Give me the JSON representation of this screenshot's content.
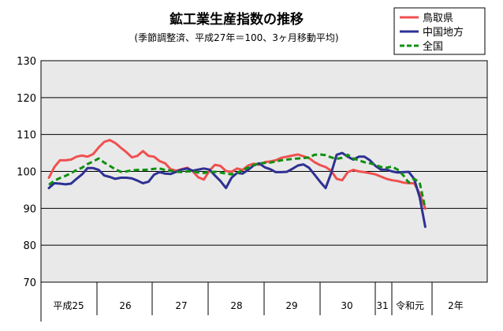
{
  "chart_data": {
    "type": "line",
    "title": "鉱工業生産指数の推移",
    "subtitle": "(季節調整済、平成27年＝100、3ヶ月移動平均)",
    "ylim": [
      70,
      130
    ],
    "yticks": [
      "70",
      "80",
      "90",
      "100",
      "110",
      "120",
      "130"
    ],
    "grid": true,
    "legend_position": "top-right",
    "year_labels": [
      "平成25",
      "26",
      "27",
      "28",
      "29",
      "30",
      "31",
      "令和元",
      "2年"
    ],
    "series": [
      {
        "name": "鳥取県",
        "color": "#f05050",
        "dash": "",
        "values": [
          98.3,
          101.2,
          103.0,
          103.0,
          103.2,
          104.0,
          104.3,
          104.0,
          104.7,
          106.5,
          108.0,
          108.5,
          107.7,
          106.4,
          105.2,
          103.8,
          104.2,
          105.5,
          104.2,
          104.0,
          102.8,
          102.2,
          100.6,
          100.2,
          100.6,
          101.0,
          100.0,
          98.4,
          97.8,
          100.2,
          101.8,
          101.5,
          100.1,
          99.9,
          100.8,
          100.4,
          101.6,
          102.1,
          101.8,
          102.5,
          102.7,
          103.0,
          103.7,
          104.0,
          104.3,
          104.6,
          104.1,
          103.6,
          102.5,
          101.7,
          101.2,
          100.2,
          98.0,
          97.6,
          99.8,
          100.4,
          100.0,
          99.8,
          99.5,
          99.2,
          98.6,
          98.0,
          97.6,
          97.4,
          97.0,
          96.8,
          96.8,
          94.0,
          89.9
        ]
      },
      {
        "name": "中国地方",
        "color": "#2e3192",
        "dash": "",
        "values": [
          95.5,
          96.8,
          96.7,
          96.5,
          96.7,
          98.0,
          99.2,
          100.9,
          100.9,
          100.4,
          98.9,
          98.5,
          98.0,
          98.3,
          98.3,
          98.1,
          97.5,
          96.8,
          97.2,
          99.1,
          99.8,
          99.4,
          99.3,
          99.9,
          100.5,
          100.8,
          100.2,
          100.5,
          100.8,
          100.5,
          98.9,
          97.4,
          95.5,
          98.3,
          99.6,
          99.4,
          100.4,
          101.6,
          102.2,
          101.1,
          100.6,
          99.8,
          99.8,
          99.9,
          100.7,
          101.6,
          101.9,
          101.0,
          99.1,
          97.2,
          95.5,
          99.5,
          104.5,
          105.0,
          104.0,
          103.2,
          104.0,
          104.0,
          103.0,
          101.5,
          100.5,
          100.5,
          100.0,
          99.7,
          99.8,
          99.9,
          98.0,
          93.0,
          85.0
        ]
      },
      {
        "name": "全国",
        "color": "#109010",
        "dash": "7,4",
        "values": [
          96.4,
          97.5,
          98.2,
          98.8,
          99.5,
          100.4,
          101.0,
          102.0,
          102.7,
          103.5,
          102.4,
          101.5,
          100.6,
          99.9,
          100.0,
          100.3,
          100.4,
          100.4,
          100.5,
          100.7,
          100.8,
          100.4,
          100.2,
          99.9,
          99.8,
          100.0,
          100.0,
          99.7,
          99.6,
          99.8,
          99.9,
          99.7,
          99.4,
          99.2,
          99.5,
          100.4,
          101.0,
          101.7,
          102.2,
          102.3,
          102.4,
          102.7,
          103.0,
          103.2,
          103.4,
          103.5,
          103.6,
          103.8,
          104.5,
          104.6,
          104.4,
          103.8,
          103.4,
          103.7,
          104.5,
          103.5,
          103.0,
          102.5,
          102.2,
          101.8,
          101.2,
          101.0,
          101.3,
          100.5,
          99.0,
          97.0,
          98.0,
          97.0,
          90.0
        ]
      }
    ]
  }
}
